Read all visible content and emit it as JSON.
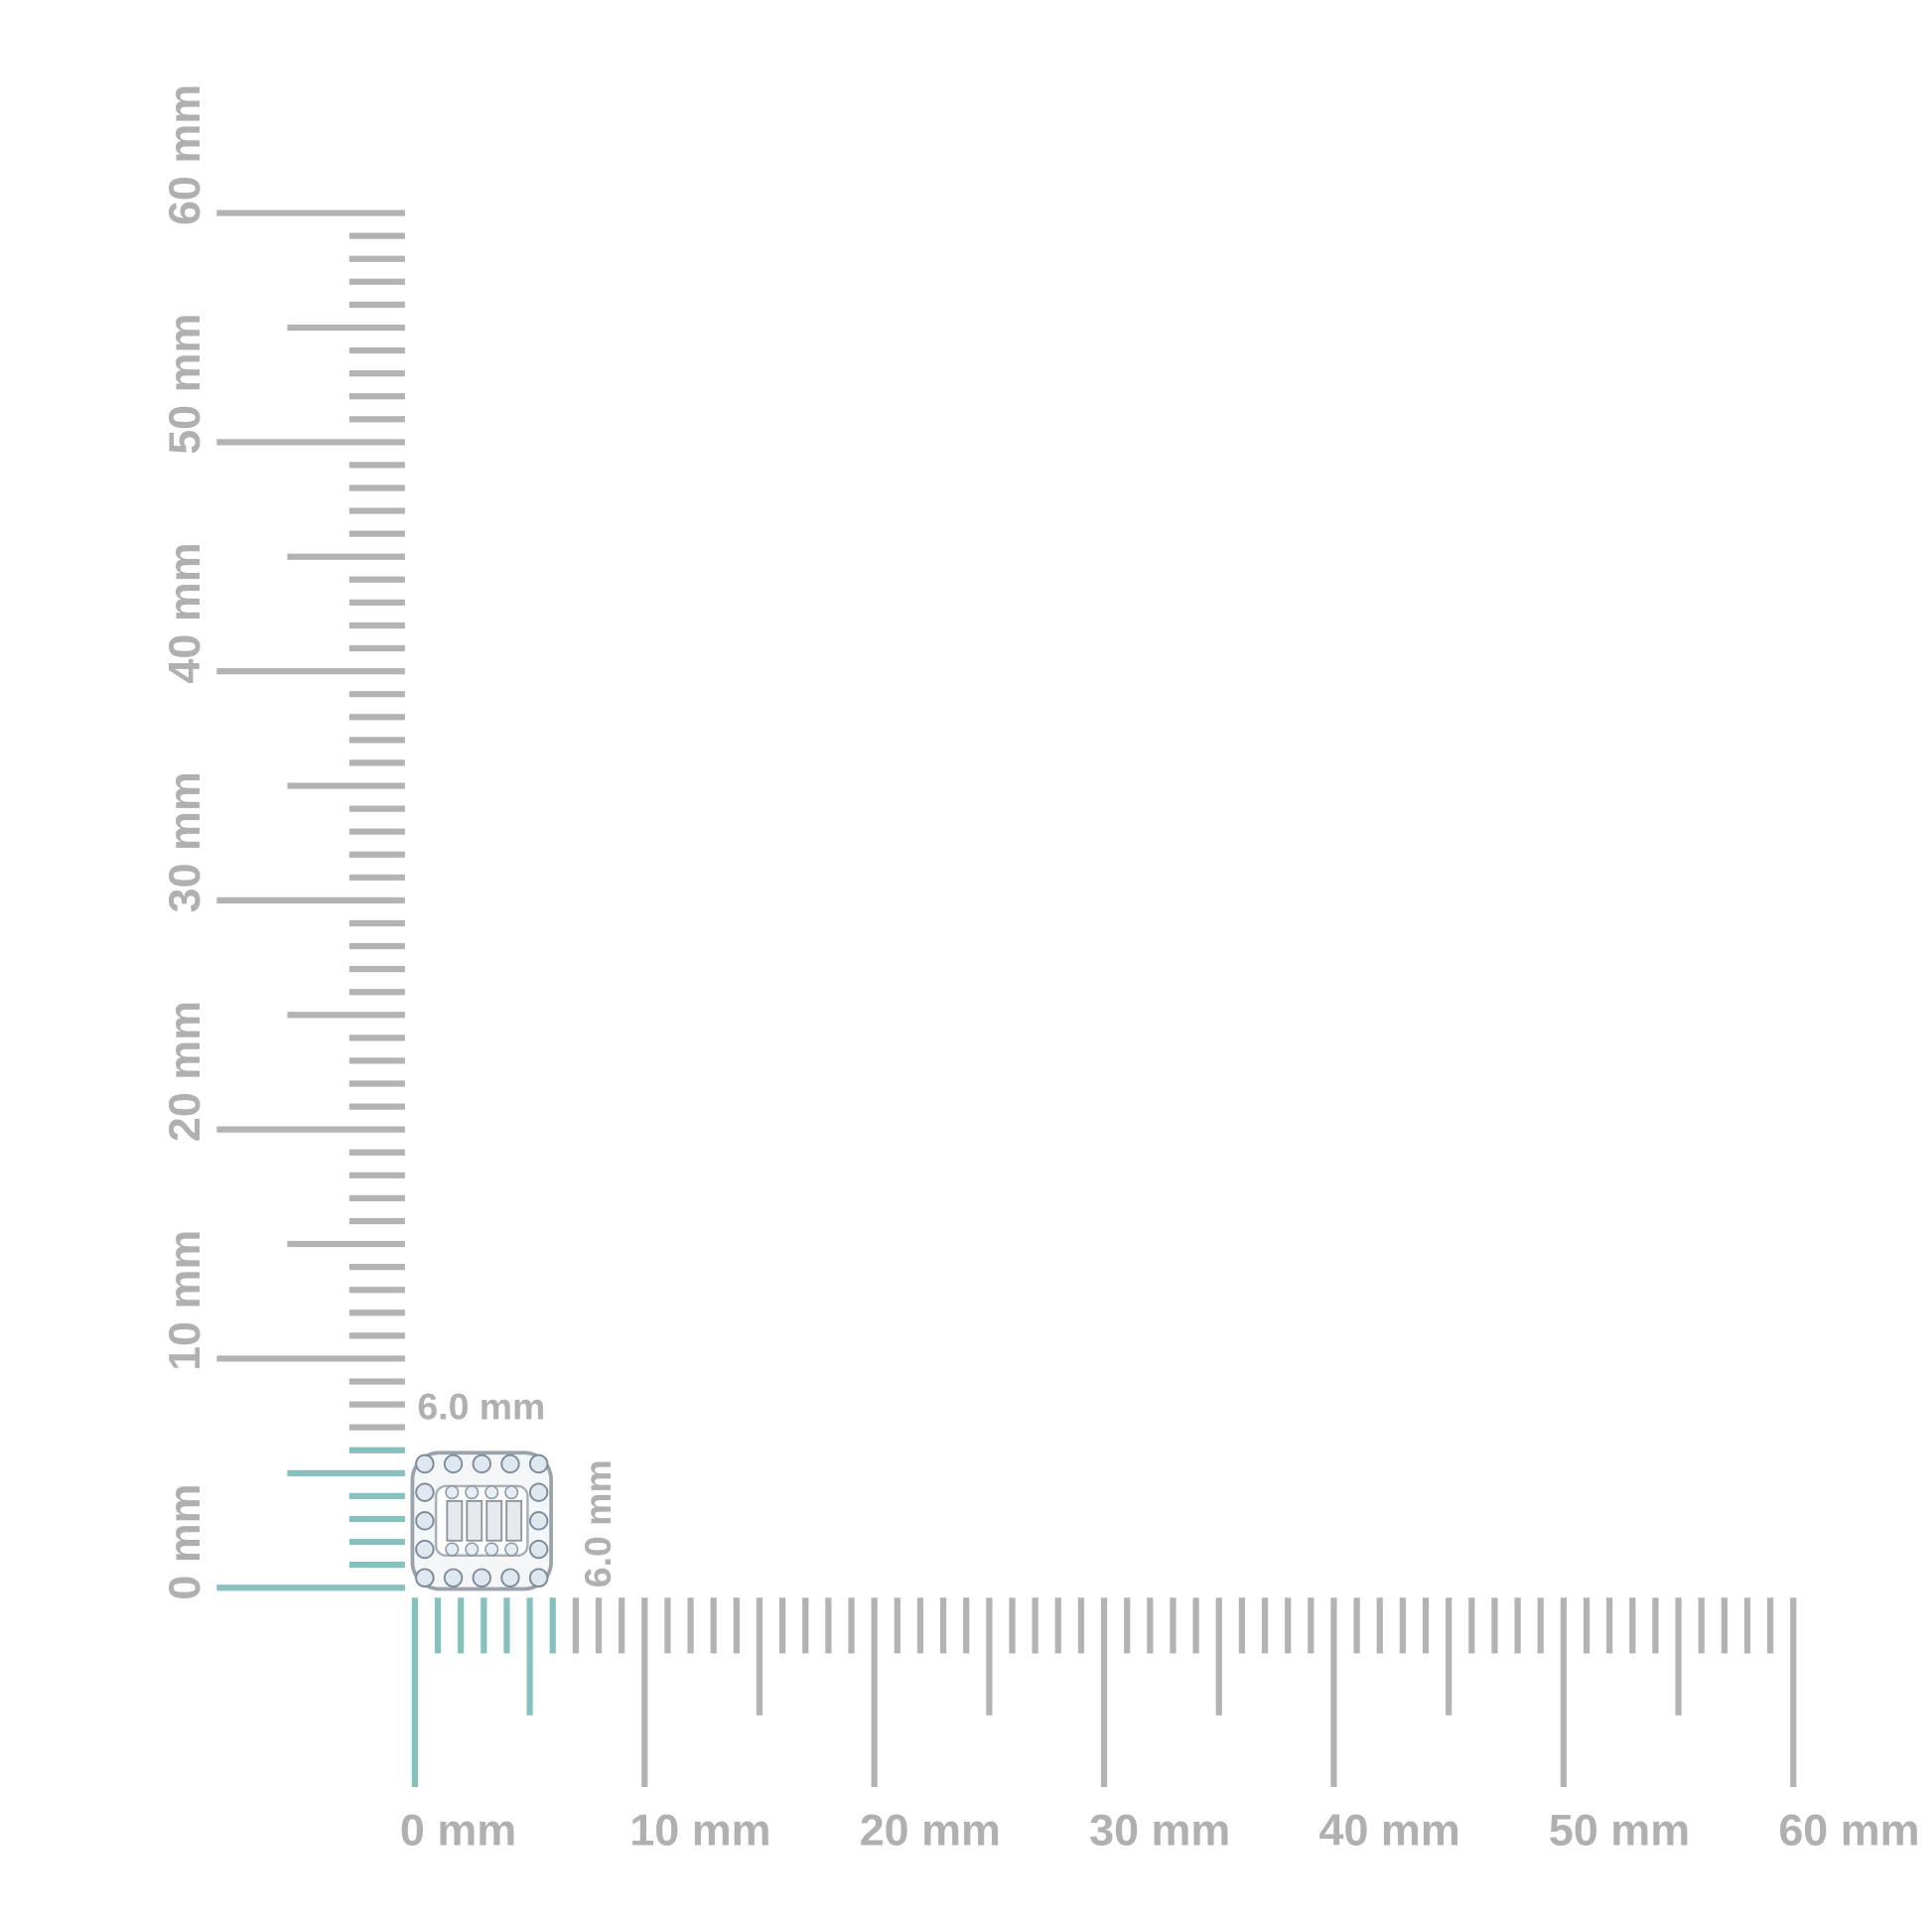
{
  "x_ruler": {
    "labels": [
      "0 mm",
      "10 mm",
      "20 mm",
      "30 mm",
      "40 mm",
      "50 mm",
      "60 mm"
    ]
  },
  "y_ruler": {
    "labels": [
      "0 mm",
      "10 mm",
      "20 mm",
      "30 mm",
      "40 mm",
      "50 mm",
      "60 mm"
    ]
  },
  "product": {
    "width_label": "6.0 mm",
    "height_label": "6.0 mm"
  }
}
